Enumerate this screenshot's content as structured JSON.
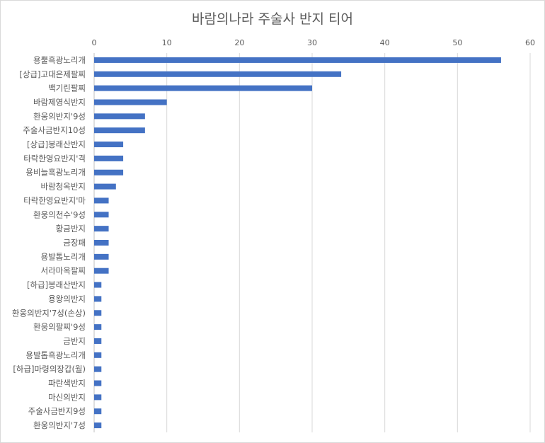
{
  "chart_data": {
    "type": "bar",
    "orientation": "horizontal",
    "title": "바람의나라 주술사 반지 티어",
    "xlabel": "",
    "ylabel": "",
    "xlim": [
      0,
      60
    ],
    "xticks": [
      0,
      10,
      20,
      30,
      40,
      50,
      60
    ],
    "x_axis_position": "top",
    "grid": true,
    "legend": "none",
    "bar_color": "#4472c4",
    "categories": [
      "용뿔흑광노리개",
      "[상급]고대은제팔찌",
      "백기린팔찌",
      "바람제영식반지",
      "환웅의반지'9성",
      "주술사금반지10성",
      "[상급]봉래산반지",
      "타락한영요반지'격",
      "용비늘흑광노리개",
      "바람청옥반지",
      "타락한영요반지'마",
      "환웅의천수'9성",
      "황금반지",
      "금장패",
      "용발톱노리개",
      "서라마옥팔찌",
      "[하급]봉래산반지",
      "용왕의반지",
      "환웅의반지'7성(손상)",
      "환웅의팔찌'9성",
      "금반지",
      "용발톱흑광노리개",
      "[하급]마령의장갑(월)",
      "파란색반지",
      "마신의반지",
      "주술사금반지9성",
      "환웅의반지'7성"
    ],
    "values": [
      56,
      34,
      30,
      10,
      7,
      7,
      4,
      4,
      4,
      3,
      2,
      2,
      2,
      2,
      2,
      2,
      1,
      1,
      1,
      1,
      1,
      1,
      1,
      1,
      1,
      1,
      1
    ]
  }
}
